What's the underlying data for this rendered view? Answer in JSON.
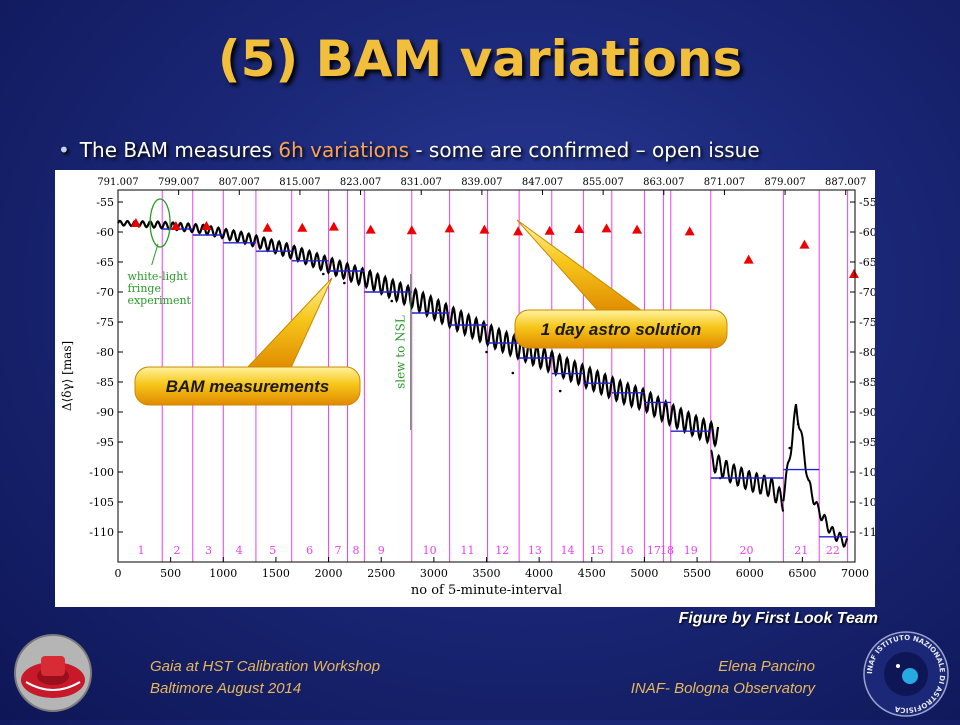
{
  "slide": {
    "title": "(5) BAM variations",
    "bullet_prefix": "The BAM measures ",
    "bullet_highlight": "6h variations",
    "bullet_suffix": " - some are confirmed – open issue",
    "figure_credit": "Figure by First Look Team"
  },
  "footer": {
    "left_line1": "Gaia at HST Calibration Workshop",
    "left_line2": "Baltimore August 2014",
    "right_line1": "Elena Pancino",
    "right_line2": "INAF- Bologna Observatory"
  },
  "logos": {
    "right_ring_text": "INAF ISTITUTO NAZIONALE DI ASTROFISICA"
  },
  "callouts": {
    "bam": "BAM measurements",
    "astro": "1 day astro solution"
  },
  "chart_data": {
    "type": "line",
    "xlabel": "no of 5-minute-interval",
    "ylabel": "Δ⟨δγ⟩ [mas]",
    "xlim": [
      0,
      7000
    ],
    "ylim": [
      -115,
      -53
    ],
    "x_ticks": [
      0,
      500,
      1000,
      1500,
      2000,
      2500,
      3000,
      3500,
      4000,
      4500,
      5000,
      5500,
      6000,
      6500,
      7000
    ],
    "y_ticks": [
      -55,
      -60,
      -65,
      -70,
      -75,
      -80,
      -85,
      -90,
      -95,
      -100,
      -105,
      -110
    ],
    "top_ticks": [
      "791.007",
      "799.007",
      "807.007",
      "815.007",
      "823.007",
      "831.007",
      "839.007",
      "847.007",
      "855.007",
      "863.007",
      "871.007",
      "879.007",
      "887.007"
    ],
    "top_tick_positions": [
      0,
      576,
      1152,
      1728,
      2304,
      2880,
      3456,
      4032,
      4608,
      5184,
      5760,
      6336,
      6912
    ],
    "segment_boundaries": [
      420,
      710,
      1000,
      1310,
      1650,
      2000,
      2180,
      2340,
      2790,
      3150,
      3510,
      3810,
      4120,
      4420,
      4690,
      5000,
      5180,
      5250,
      5630,
      6320,
      6660,
      6930
    ],
    "segment_labels": [
      {
        "label": "1",
        "x": 220
      },
      {
        "label": "2",
        "x": 560
      },
      {
        "label": "3",
        "x": 860
      },
      {
        "label": "4",
        "x": 1150
      },
      {
        "label": "5",
        "x": 1470
      },
      {
        "label": "6",
        "x": 1820
      },
      {
        "label": "7",
        "x": 2090
      },
      {
        "label": "8",
        "x": 2260
      },
      {
        "label": "9",
        "x": 2500
      },
      {
        "label": "10",
        "x": 2960
      },
      {
        "label": "11",
        "x": 3320
      },
      {
        "label": "12",
        "x": 3650
      },
      {
        "label": "13",
        "x": 3960
      },
      {
        "label": "14",
        "x": 4270
      },
      {
        "label": "15",
        "x": 4550
      },
      {
        "label": "16",
        "x": 4830
      },
      {
        "label": "17",
        "x": 5090
      },
      {
        "label": "18",
        "x": 5215
      },
      {
        "label": "19",
        "x": 5440
      },
      {
        "label": "20",
        "x": 5970
      },
      {
        "label": "21",
        "x": 6490
      },
      {
        "label": "22",
        "x": 6790
      }
    ],
    "annotations": {
      "fringe": "white-light fringe experiment",
      "slew": "slew to NSL"
    },
    "bam_trend": [
      [
        0,
        -58.5
      ],
      [
        400,
        -58.8
      ],
      [
        800,
        -59.5
      ],
      [
        1200,
        -61
      ],
      [
        1600,
        -63
      ],
      [
        2000,
        -65.5
      ],
      [
        2400,
        -68
      ],
      [
        2800,
        -71
      ],
      [
        3200,
        -74.5
      ],
      [
        3600,
        -77.8
      ],
      [
        4000,
        -80.8
      ],
      [
        4400,
        -83.8
      ],
      [
        4800,
        -86.8
      ],
      [
        5000,
        -88
      ],
      [
        5200,
        -90
      ],
      [
        5500,
        -92.5
      ],
      [
        5700,
        -94
      ]
    ],
    "bam_trend_late": [
      [
        5630,
        -98
      ],
      [
        5800,
        -100
      ],
      [
        6000,
        -101.5
      ],
      [
        6200,
        -102.5
      ],
      [
        6320,
        -105
      ]
    ],
    "bam_spike": [
      [
        6320,
        -104
      ],
      [
        6400,
        -95
      ],
      [
        6440,
        -89
      ],
      [
        6500,
        -95
      ],
      [
        6560,
        -102
      ],
      [
        6640,
        -106
      ],
      [
        6780,
        -110
      ],
      [
        6930,
        -112
      ]
    ],
    "astro_triangles": [
      [
        170,
        -58.5
      ],
      [
        550,
        -59
      ],
      [
        840,
        -59
      ],
      [
        1420,
        -59.3
      ],
      [
        1750,
        -59.3
      ],
      [
        2050,
        -59.1
      ],
      [
        2400,
        -59.6
      ],
      [
        2790,
        -59.7
      ],
      [
        3150,
        -59.4
      ],
      [
        3480,
        -59.6
      ],
      [
        3800,
        -59.9
      ],
      [
        4100,
        -59.8
      ],
      [
        4380,
        -59.5
      ],
      [
        4640,
        -59.4
      ],
      [
        4930,
        -59.6
      ],
      [
        5430,
        -59.9
      ],
      [
        5990,
        -64.6
      ],
      [
        6520,
        -62.1
      ],
      [
        6990,
        -67
      ]
    ],
    "blue_segments": [
      [
        420,
        710,
        -59.5
      ],
      [
        710,
        1000,
        -60.5
      ],
      [
        1000,
        1310,
        -61.8
      ],
      [
        1310,
        1650,
        -63.2
      ],
      [
        1650,
        2000,
        -64.8
      ],
      [
        2000,
        2340,
        -66.5
      ],
      [
        2340,
        2790,
        -70
      ],
      [
        2790,
        3150,
        -73.5
      ],
      [
        3150,
        3510,
        -75.5
      ],
      [
        3510,
        3810,
        -78.5
      ],
      [
        3810,
        4120,
        -81
      ],
      [
        4120,
        4420,
        -83.6
      ],
      [
        4420,
        4690,
        -85.2
      ],
      [
        4690,
        5000,
        -86.8
      ],
      [
        5000,
        5250,
        -88.4
      ],
      [
        5250,
        5630,
        -93.2
      ],
      [
        5630,
        6320,
        -101
      ],
      [
        6320,
        6660,
        -99.6
      ],
      [
        6660,
        6930,
        -110.8
      ]
    ],
    "colors": {
      "bam_line": "#000000",
      "astro_marker": "#ee0000",
      "segment_line": "#ee3ef0",
      "model_step": "#2222cc",
      "fringe_annotation": "#2a9a2a",
      "slide_background": "#1b2878",
      "title": "#f2bf3c",
      "callout": "#f5b800"
    }
  }
}
